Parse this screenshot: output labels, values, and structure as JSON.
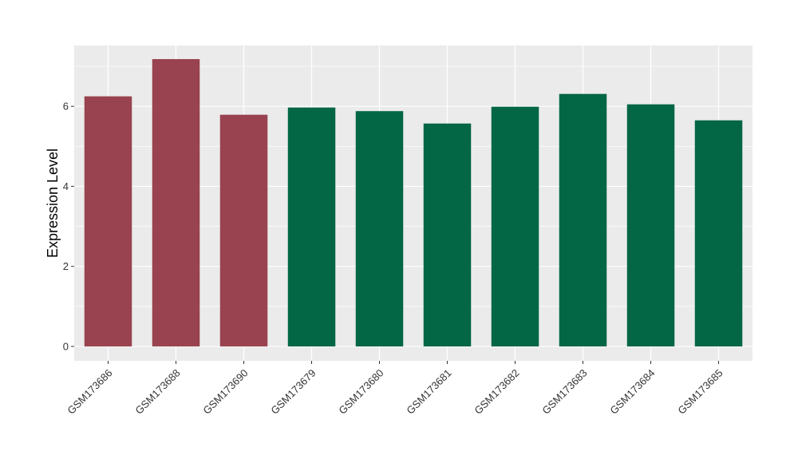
{
  "chart_data": {
    "type": "bar",
    "ylabel": "Expression Level",
    "xlabel": "",
    "categories": [
      "GSM173686",
      "GSM173688",
      "GSM173690",
      "GSM173679",
      "GSM173680",
      "GSM173681",
      "GSM173682",
      "GSM173683",
      "GSM173684",
      "GSM173685"
    ],
    "values": [
      6.25,
      7.18,
      5.79,
      5.97,
      5.88,
      5.57,
      5.99,
      6.31,
      6.05,
      5.65
    ],
    "bar_colors": [
      "#994350",
      "#994350",
      "#994350",
      "#036644",
      "#036644",
      "#036644",
      "#036644",
      "#036644",
      "#036644",
      "#036644"
    ],
    "yticks": [
      0,
      2,
      4,
      6
    ],
    "ylim": [
      -0.36,
      7.52
    ],
    "grid": true,
    "panel_background": "#ebebeb"
  }
}
